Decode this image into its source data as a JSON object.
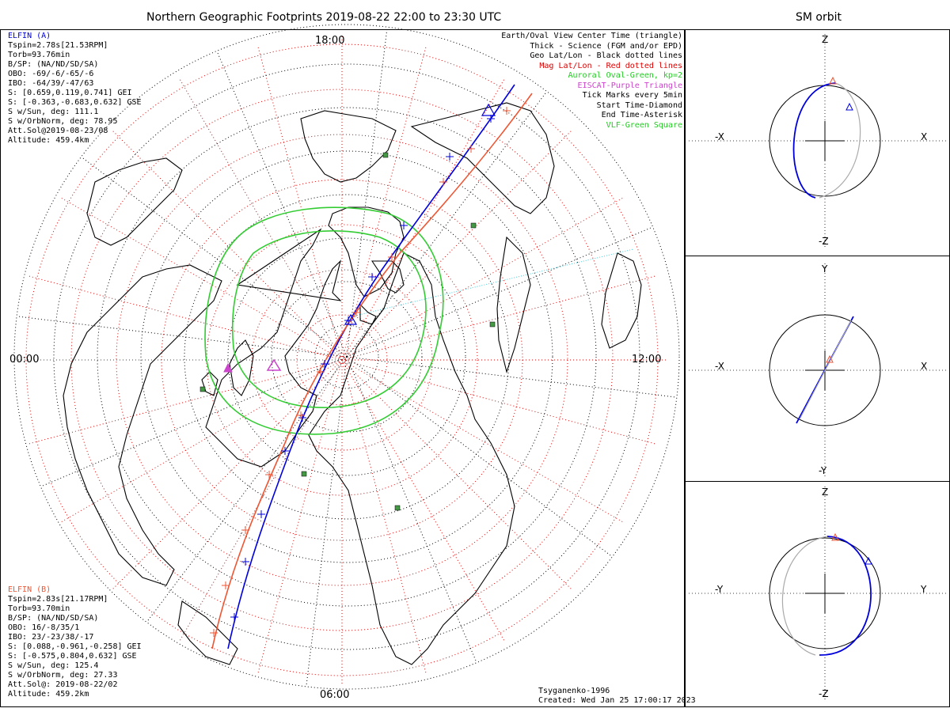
{
  "title": "Northern Geographic Footprints 2019-08-22 22:00 to 23:30 UTC",
  "orbit_title": "SM orbit",
  "local_time_labels": {
    "top": "18:00",
    "bottom": "06:00",
    "left": "00:00",
    "right": "12:00"
  },
  "legend": [
    {
      "text": "Earth/Oval View Center Time (triangle)",
      "color": "#000000"
    },
    {
      "text": "Thick - Science (FGM and/or EPD)",
      "color": "#000000"
    },
    {
      "text": "Geo Lat/Lon - Black dotted lines",
      "color": "#000000"
    },
    {
      "text": "Mag Lat/Lon - Red dotted lines",
      "color": "#e00000"
    },
    {
      "text": "Auroral Oval-Green, kp=2",
      "color": "#22cc22"
    },
    {
      "text": "EISCAT-Purple Triangle",
      "color": "#cc44cc"
    },
    {
      "text": "Tick Marks every 5min",
      "color": "#000000"
    },
    {
      "text": "Start Time-Diamond",
      "color": "#000000"
    },
    {
      "text": "End Time-Asterisk",
      "color": "#000000"
    },
    {
      "text": "VLF-Green Square",
      "color": "#22cc22"
    }
  ],
  "elfin_a": {
    "name": "ELFIN (A)",
    "color": "#0000dd",
    "lines": [
      "Tspin=2.78s[21.53RPM]",
      "Torb=93.76min",
      "B/SP: (NA/ND/SD/SA)",
      "OBO: -69/-6/-65/-6",
      "IBO: -64/39/-47/63",
      "S: [0.659,0.119,0.741] GEI",
      "S: [-0.363,-0.683,0.632] GSE",
      "S w/Sun, deg: 111.1",
      "S w/OrbNorm, deg: 78.95",
      "Att.Sol@2019-08-23/08",
      "Altitude: 459.4km"
    ]
  },
  "elfin_b": {
    "name": "ELFIN (B)",
    "color": "#ee5533",
    "lines": [
      "Tspin=2.83s[21.17RPM]",
      "Torb=93.70min",
      "B/SP: (NA/ND/SD/SA)",
      "OBO: 16/-8/35/1",
      "IBO: 23/-23/38/-17",
      "S: [0.088,-0.961,-0.258] GEI",
      "S: [-0.575,0.804,0.632] GSE",
      "S w/Sun, deg: 125.4",
      "S w/OrbNorm, deg: 27.33",
      "Att.Sol@: 2019-08-22/02",
      "Altitude: 459.2km"
    ]
  },
  "footer": {
    "model": "Tsyganenko-1996",
    "created": "Created: Wed Jan 25 17:00:17 2023"
  },
  "orbit_panels": [
    {
      "top": "Z",
      "bottom": "-Z",
      "left": "-X",
      "right": "X"
    },
    {
      "top": "Y",
      "bottom": "-Y",
      "left": "-X",
      "right": "X"
    },
    {
      "top": "Z",
      "bottom": "-Z",
      "left": "-Y",
      "right": "Y"
    }
  ],
  "colors": {
    "elfin_a": "#0000dd",
    "elfin_b": "#ee5533",
    "oval": "#33cc33",
    "mag_grid": "#e00000",
    "eiscat": "#cc44cc",
    "vlf": "#449944",
    "orbit_gray": "#aaaaaa"
  }
}
